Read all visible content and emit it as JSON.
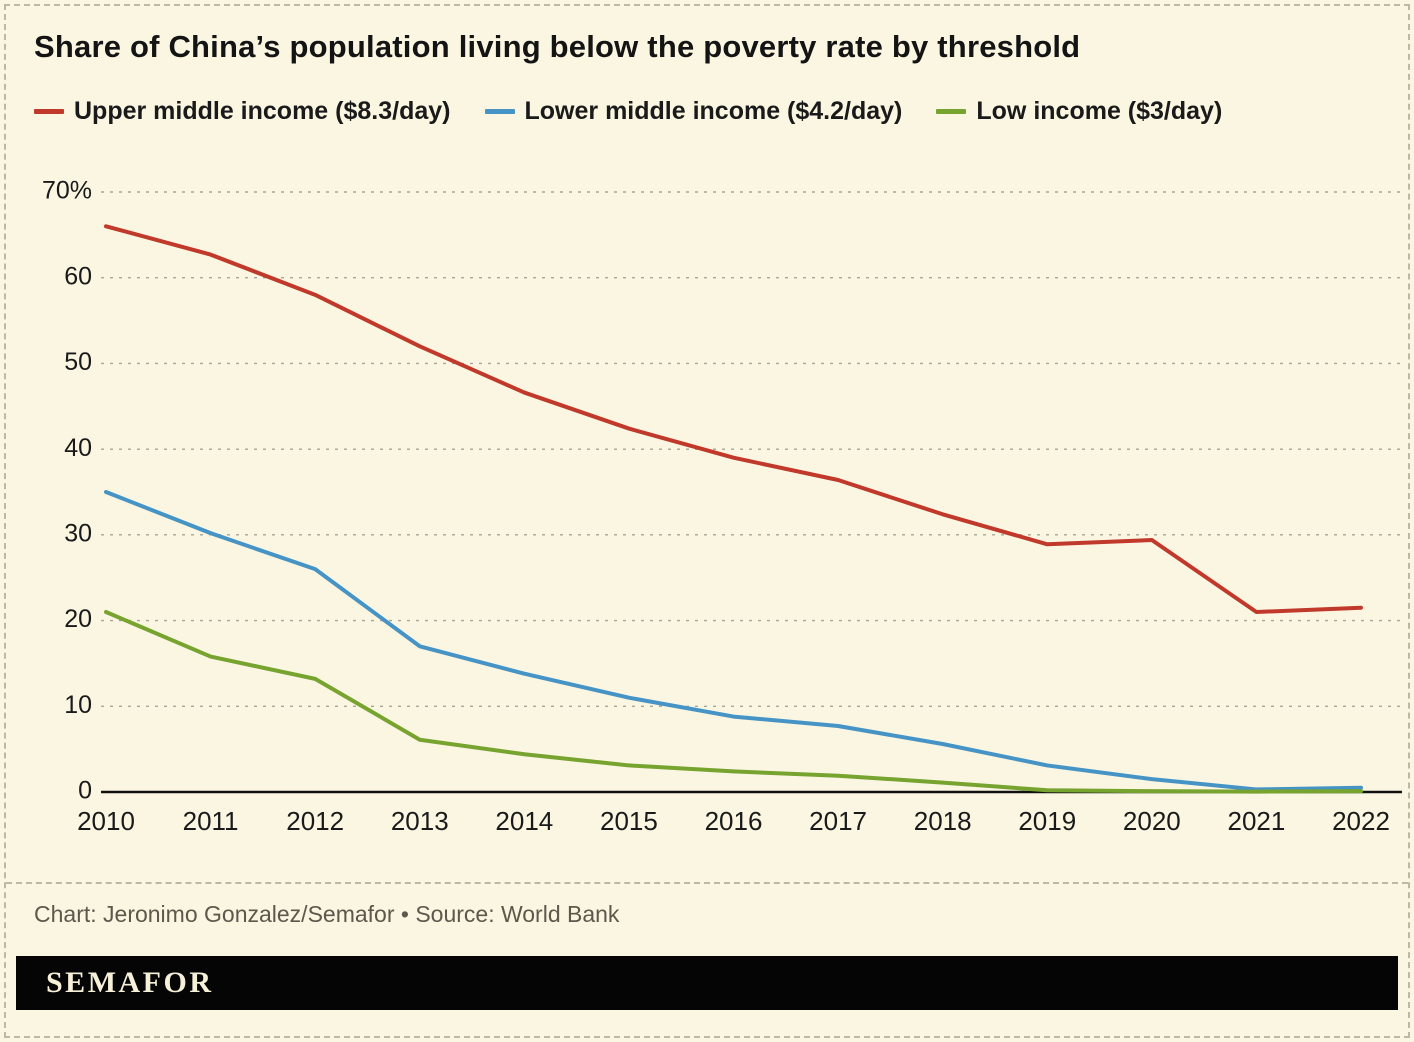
{
  "title": "Share of China’s population living below the poverty rate by threshold",
  "chart_data": {
    "type": "line",
    "x": [
      "2010",
      "2011",
      "2012",
      "2013",
      "2014",
      "2015",
      "2016",
      "2017",
      "2018",
      "2019",
      "2020",
      "2021",
      "2022"
    ],
    "series": [
      {
        "name": "Upper middle income ($8.3/day)",
        "color": "#c0392b",
        "values": [
          66,
          62.7,
          58,
          52,
          46.6,
          42.4,
          39,
          36.4,
          32.4,
          28.9,
          29.4,
          21,
          21.5
        ]
      },
      {
        "name": "Lower middle income ($4.2/day)",
        "color": "#4694c6",
        "values": [
          35,
          30.2,
          26,
          17,
          13.8,
          11,
          8.8,
          7.7,
          5.6,
          3.1,
          1.5,
          0.3,
          0.5
        ]
      },
      {
        "name": "Low income ($3/day)",
        "color": "#77a32f",
        "values": [
          21,
          15.8,
          13.2,
          6.1,
          4.4,
          3.1,
          2.4,
          1.9,
          1.1,
          0.2,
          0.1,
          0.05,
          0.1
        ]
      }
    ],
    "title": "Share of China’s population living below the poverty rate by threshold",
    "xlabel": "",
    "ylabel": "",
    "ylim": [
      0,
      70
    ],
    "yticks": [
      0,
      10,
      20,
      30,
      40,
      50,
      60,
      70
    ],
    "ytick_labels": [
      "0",
      "10",
      "20",
      "30",
      "40",
      "50",
      "60",
      "70%"
    ],
    "grid": "horizontal-dashed",
    "legend_position": "top"
  },
  "footer": {
    "credit": "Chart: Jeronimo Gonzalez/Semafor • Source: World Bank",
    "brand": "SEMAFOR"
  },
  "colors": {
    "background": "#faf6e2",
    "border": "#bdb8a4",
    "axis": "#111111",
    "grid": "#a9a596",
    "text": "#1a1a1a",
    "muted": "#5c584c",
    "brand_bar": "#050505",
    "brand_text": "#f6f0d8"
  }
}
